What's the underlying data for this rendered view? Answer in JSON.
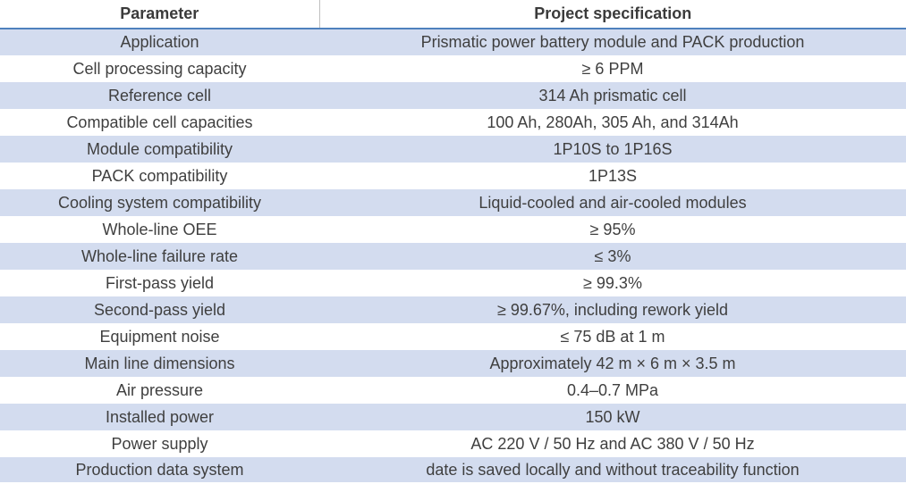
{
  "headers": {
    "parameter": "Parameter",
    "specification": "Project specification"
  },
  "rows": [
    {
      "parameter": "Application",
      "specification": "Prismatic  power battery module and PACK production"
    },
    {
      "parameter": "Cell processing capacity",
      "specification": "≥ 6 PPM"
    },
    {
      "parameter": "Reference cell",
      "specification": "314 Ah prismatic cell"
    },
    {
      "parameter": "Compatible cell capacities",
      "specification": "100 Ah, 280Ah, 305 Ah,  and 314Ah"
    },
    {
      "parameter": "Module compatibility",
      "specification": "1P10S to 1P16S"
    },
    {
      "parameter": "PACK compatibility",
      "specification": "1P13S"
    },
    {
      "parameter": "Cooling system compatibility",
      "specification": "Liquid-cooled and air-cooled modules"
    },
    {
      "parameter": "Whole-line OEE",
      "specification": "≥ 95%"
    },
    {
      "parameter": "Whole-line failure rate",
      "specification": "≤ 3%"
    },
    {
      "parameter": "First-pass yield",
      "specification": "≥ 99.3%"
    },
    {
      "parameter": "Second-pass yield",
      "specification": "≥ 99.67%, including rework yield"
    },
    {
      "parameter": "Equipment noise",
      "specification": "≤ 75 dB at 1 m"
    },
    {
      "parameter": "Main line dimensions",
      "specification": "Approximately 42 m × 6 m × 3.5 m"
    },
    {
      "parameter": "Air pressure",
      "specification": "0.4–0.7 MPa"
    },
    {
      "parameter": "Installed power",
      "specification": "150 kW"
    },
    {
      "parameter": "Power supply",
      "specification": "AC 220 V / 50 Hz and AC 380 V / 50 Hz"
    },
    {
      "parameter": "Production data system",
      "specification": "date is saved locally and without traceability function"
    }
  ]
}
